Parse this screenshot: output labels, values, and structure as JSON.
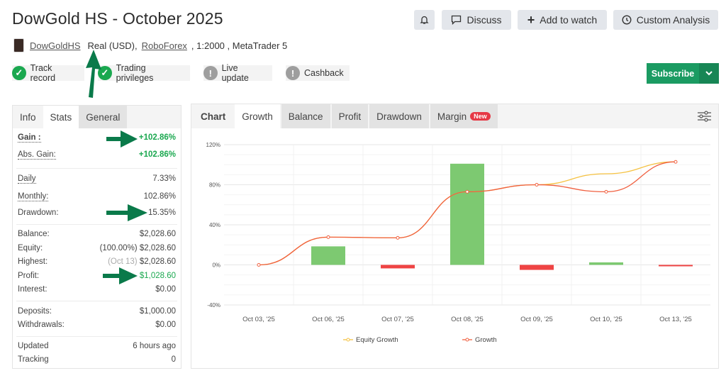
{
  "header": {
    "title": "DowGold HS - October 2025",
    "bell_icon": "bell-icon",
    "discuss": "Discuss",
    "add_watch": "Add to watch",
    "custom_analysis": "Custom Analysis"
  },
  "account": {
    "name": "DowGoldHS",
    "type": "Real (USD),",
    "broker": "RoboForex",
    "leverage": ", 1:2000 , MetaTrader 5"
  },
  "badges": [
    {
      "label": "Track record",
      "status": "ok"
    },
    {
      "label": "Trading privileges",
      "status": "ok"
    },
    {
      "label": "Live update",
      "status": "warn"
    },
    {
      "label": "Cashback",
      "status": "warn"
    }
  ],
  "subscribe": "Subscribe",
  "left_tabs": [
    "Info",
    "Stats",
    "General"
  ],
  "stats": {
    "gain": {
      "label": "Gain :",
      "value": "+102.86%"
    },
    "abs_gain": {
      "label": "Abs. Gain:",
      "value": "+102.86%"
    },
    "daily": {
      "label": "Daily",
      "value": "7.33%"
    },
    "monthly": {
      "label": "Monthly:",
      "value": "102.86%"
    },
    "drawdown": {
      "label": "Drawdown:",
      "value": "15.35%"
    },
    "balance": {
      "label": "Balance:",
      "value": "$2,028.60"
    },
    "equity": {
      "label": "Equity:",
      "note": "(100.00%)",
      "value": "$2,028.60"
    },
    "highest": {
      "label": "Highest:",
      "note": "(Oct 13)",
      "value": "$2,028.60"
    },
    "profit": {
      "label": "Profit:",
      "value": "$1,028.60"
    },
    "interest": {
      "label": "Interest:",
      "value": "$0.00"
    },
    "deposits": {
      "label": "Deposits:",
      "value": "$1,000.00"
    },
    "withdrawals": {
      "label": "Withdrawals:",
      "value": "$0.00"
    },
    "updated": {
      "label": "Updated",
      "value": "6 hours ago"
    },
    "tracking": {
      "label": "Tracking",
      "value": "0"
    }
  },
  "chart_tabs": {
    "chart": "Chart",
    "growth": "Growth",
    "balance": "Balance",
    "profit": "Profit",
    "drawdown": "Drawdown",
    "margin": "Margin",
    "new_badge": "New"
  },
  "colors": {
    "green": "#1aa84f",
    "bar_pos": "#7dc971",
    "bar_neg": "#ef4444",
    "equity": "#f5c242",
    "growth": "#f06040",
    "arrow": "#0a7a4a"
  },
  "chart_data": {
    "type": "line",
    "categories": [
      "Oct 03, '25",
      "Oct 06, '25",
      "Oct 07, '25",
      "Oct 08, '25",
      "Oct 09, '25",
      "Oct 10, '25",
      "Oct 13, '25"
    ],
    "ylim": [
      -40,
      120
    ],
    "yticks": [
      "120%",
      "80%",
      "40%",
      "0%",
      "-40%"
    ],
    "ytick_values": [
      120,
      80,
      40,
      0,
      -40
    ],
    "grid": true,
    "legend": "bottom",
    "series": [
      {
        "name": "Equity Growth",
        "values": [
          0,
          27.7,
          27,
          73,
          80,
          91,
          102.86
        ]
      },
      {
        "name": "Growth",
        "values": [
          0,
          27.7,
          27,
          73,
          80,
          73,
          102.86
        ]
      }
    ],
    "bars": [
      0,
      18.5,
      -3.5,
      101,
      -5,
      2.5,
      -0.5
    ]
  }
}
